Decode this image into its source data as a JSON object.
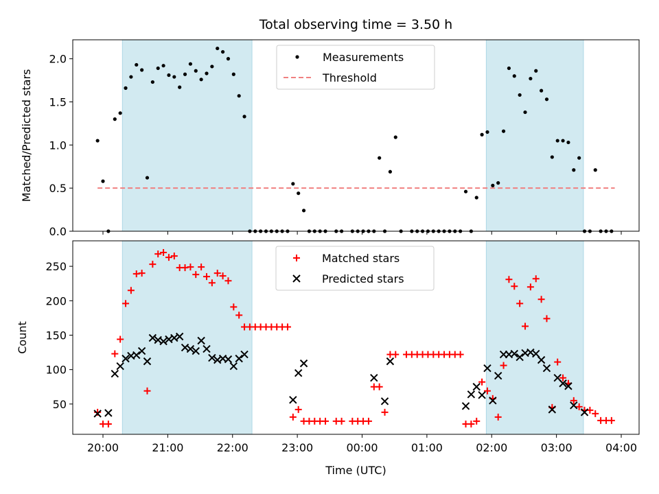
{
  "chart_data": [
    {
      "type": "scatter",
      "title": "Total observing time = 3.50 h",
      "ylabel": "Matched/Predicted stars",
      "xlabel": "",
      "x_axis": "time",
      "ylim": [
        0,
        2.22
      ],
      "yticks": [
        0.0,
        0.5,
        1.0,
        1.5,
        2.0
      ],
      "ytick_labels": [
        "0.0",
        "0.5",
        "1.0",
        "1.5",
        "2.0"
      ],
      "shaded_intervals": [
        [
          "20:18",
          "22:18"
        ],
        [
          "01:55",
          "03:25"
        ]
      ],
      "shade_color": "#add8e6",
      "legend_position": "upper center",
      "series": [
        {
          "name": "Measurements",
          "marker": "dot",
          "color": "#000000",
          "points": [
            [
              "19:55",
              1.05
            ],
            [
              "20:00",
              0.58
            ],
            [
              "20:05",
              0.0
            ],
            [
              "20:11",
              1.3
            ],
            [
              "20:16",
              1.37
            ],
            [
              "20:21",
              1.66
            ],
            [
              "20:26",
              1.79
            ],
            [
              "20:31",
              1.93
            ],
            [
              "20:36",
              1.87
            ],
            [
              "20:41",
              0.62
            ],
            [
              "20:46",
              1.73
            ],
            [
              "20:51",
              1.89
            ],
            [
              "20:56",
              1.92
            ],
            [
              "21:01",
              1.81
            ],
            [
              "21:06",
              1.79
            ],
            [
              "21:11",
              1.67
            ],
            [
              "21:16",
              1.82
            ],
            [
              "21:21",
              1.94
            ],
            [
              "21:26",
              1.86
            ],
            [
              "21:31",
              1.76
            ],
            [
              "21:36",
              1.83
            ],
            [
              "21:41",
              1.91
            ],
            [
              "21:46",
              2.12
            ],
            [
              "21:51",
              2.08
            ],
            [
              "21:56",
              2.0
            ],
            [
              "22:01",
              1.82
            ],
            [
              "22:06",
              1.57
            ],
            [
              "22:11",
              1.33
            ],
            [
              "22:16",
              0.0
            ],
            [
              "22:21",
              0.0
            ],
            [
              "22:26",
              0.0
            ],
            [
              "22:31",
              0.0
            ],
            [
              "22:36",
              0.0
            ],
            [
              "22:41",
              0.0
            ],
            [
              "22:46",
              0.0
            ],
            [
              "22:51",
              0.0
            ],
            [
              "22:56",
              0.55
            ],
            [
              "23:01",
              0.44
            ],
            [
              "23:06",
              0.24
            ],
            [
              "23:11",
              0.0
            ],
            [
              "23:16",
              0.0
            ],
            [
              "23:21",
              0.0
            ],
            [
              "23:26",
              0.0
            ],
            [
              "23:36",
              0.0
            ],
            [
              "23:41",
              0.0
            ],
            [
              "23:51",
              0.0
            ],
            [
              "23:56",
              0.0
            ],
            [
              "00:01",
              0.0
            ],
            [
              "00:06",
              0.0
            ],
            [
              "00:11",
              0.0
            ],
            [
              "00:16",
              0.85
            ],
            [
              "00:21",
              0.0
            ],
            [
              "00:26",
              0.69
            ],
            [
              "00:31",
              1.09
            ],
            [
              "00:36",
              0.0
            ],
            [
              "00:46",
              0.0
            ],
            [
              "00:51",
              0.0
            ],
            [
              "00:56",
              0.0
            ],
            [
              "01:01",
              0.0
            ],
            [
              "01:06",
              0.0
            ],
            [
              "01:11",
              0.0
            ],
            [
              "01:16",
              0.0
            ],
            [
              "01:21",
              0.0
            ],
            [
              "01:26",
              0.0
            ],
            [
              "01:31",
              0.0
            ],
            [
              "01:36",
              0.46
            ],
            [
              "01:41",
              0.0
            ],
            [
              "01:46",
              0.39
            ],
            [
              "01:51",
              1.12
            ],
            [
              "01:56",
              1.15
            ],
            [
              "02:01",
              0.53
            ],
            [
              "02:06",
              0.56
            ],
            [
              "02:11",
              1.16
            ],
            [
              "02:16",
              1.89
            ],
            [
              "02:21",
              1.8
            ],
            [
              "02:26",
              1.58
            ],
            [
              "02:31",
              1.38
            ],
            [
              "02:36",
              1.77
            ],
            [
              "02:41",
              1.86
            ],
            [
              "02:46",
              1.63
            ],
            [
              "02:51",
              1.53
            ],
            [
              "02:56",
              0.86
            ],
            [
              "03:01",
              1.05
            ],
            [
              "03:06",
              1.05
            ],
            [
              "03:11",
              1.03
            ],
            [
              "03:16",
              0.71
            ],
            [
              "03:21",
              0.85
            ],
            [
              "03:26",
              0.0
            ],
            [
              "03:31",
              0.0
            ],
            [
              "03:36",
              0.71
            ],
            [
              "03:41",
              0.0
            ],
            [
              "03:46",
              0.0
            ],
            [
              "03:51",
              0.0
            ]
          ]
        },
        {
          "name": "Threshold",
          "marker": "dashed-line",
          "color": "#f08080",
          "points": [
            [
              "19:55",
              0.5
            ],
            [
              "03:54",
              0.5
            ]
          ]
        }
      ]
    },
    {
      "type": "scatter",
      "title": "",
      "ylabel": "Count",
      "xlabel": "Time (UTC)",
      "x_axis": "time",
      "ylim": [
        6,
        287
      ],
      "yticks": [
        50,
        100,
        150,
        200,
        250
      ],
      "ytick_labels": [
        "50",
        "100",
        "150",
        "200",
        "250"
      ],
      "xticks": [
        "20:00",
        "21:00",
        "22:00",
        "23:00",
        "00:00",
        "01:00",
        "02:00",
        "03:00",
        "04:00"
      ],
      "shaded_intervals": [
        [
          "20:18",
          "22:18"
        ],
        [
          "01:55",
          "03:25"
        ]
      ],
      "shade_color": "#add8e6",
      "legend_position": "upper center",
      "series": [
        {
          "name": "Matched stars",
          "marker": "plus",
          "color": "#ff0000",
          "points": [
            [
              "19:55",
              38
            ],
            [
              "20:00",
              21
            ],
            [
              "20:05",
              21
            ],
            [
              "20:11",
              123
            ],
            [
              "20:16",
              144
            ],
            [
              "20:21",
              196
            ],
            [
              "20:26",
              215
            ],
            [
              "20:31",
              239
            ],
            [
              "20:36",
              240
            ],
            [
              "20:41",
              69
            ],
            [
              "20:46",
              253
            ],
            [
              "20:51",
              268
            ],
            [
              "20:56",
              270
            ],
            [
              "21:01",
              263
            ],
            [
              "21:06",
              265
            ],
            [
              "21:11",
              248
            ],
            [
              "21:16",
              248
            ],
            [
              "21:21",
              249
            ],
            [
              "21:26",
              238
            ],
            [
              "21:31",
              249
            ],
            [
              "21:36",
              235
            ],
            [
              "21:41",
              226
            ],
            [
              "21:46",
              240
            ],
            [
              "21:51",
              236
            ],
            [
              "21:56",
              229
            ],
            [
              "22:01",
              191
            ],
            [
              "22:06",
              179
            ],
            [
              "22:11",
              162
            ],
            [
              "22:16",
              162
            ],
            [
              "22:21",
              162
            ],
            [
              "22:26",
              162
            ],
            [
              "22:31",
              162
            ],
            [
              "22:36",
              162
            ],
            [
              "22:41",
              162
            ],
            [
              "22:46",
              162
            ],
            [
              "22:51",
              162
            ],
            [
              "22:56",
              31
            ],
            [
              "23:01",
              42
            ],
            [
              "23:06",
              25
            ],
            [
              "23:11",
              25
            ],
            [
              "23:16",
              25
            ],
            [
              "23:21",
              25
            ],
            [
              "23:26",
              25
            ],
            [
              "23:36",
              25
            ],
            [
              "23:41",
              25
            ],
            [
              "23:51",
              25
            ],
            [
              "23:56",
              25
            ],
            [
              "00:01",
              25
            ],
            [
              "00:06",
              25
            ],
            [
              "00:11",
              75
            ],
            [
              "00:16",
              75
            ],
            [
              "00:21",
              38
            ],
            [
              "00:26",
              122
            ],
            [
              "00:31",
              122
            ],
            [
              "00:41",
              122
            ],
            [
              "00:46",
              122
            ],
            [
              "00:51",
              122
            ],
            [
              "00:56",
              122
            ],
            [
              "01:01",
              122
            ],
            [
              "01:06",
              122
            ],
            [
              "01:11",
              122
            ],
            [
              "01:16",
              122
            ],
            [
              "01:21",
              122
            ],
            [
              "01:26",
              122
            ],
            [
              "01:31",
              122
            ],
            [
              "01:36",
              21
            ],
            [
              "01:41",
              21
            ],
            [
              "01:46",
              25
            ],
            [
              "01:51",
              82
            ],
            [
              "01:56",
              69
            ],
            [
              "02:01",
              58
            ],
            [
              "02:06",
              31
            ],
            [
              "02:11",
              106
            ],
            [
              "02:16",
              231
            ],
            [
              "02:21",
              221
            ],
            [
              "02:26",
              196
            ],
            [
              "02:31",
              163
            ],
            [
              "02:36",
              220
            ],
            [
              "02:41",
              232
            ],
            [
              "02:46",
              202
            ],
            [
              "02:51",
              174
            ],
            [
              "02:56",
              45
            ],
            [
              "03:01",
              111
            ],
            [
              "03:06",
              88
            ],
            [
              "03:11",
              80
            ],
            [
              "03:16",
              55
            ],
            [
              "03:21",
              46
            ],
            [
              "03:26",
              41
            ],
            [
              "03:31",
              41
            ],
            [
              "03:36",
              36
            ],
            [
              "03:41",
              26
            ],
            [
              "03:46",
              26
            ],
            [
              "03:51",
              26
            ]
          ]
        },
        {
          "name": "Predicted stars",
          "marker": "x",
          "color": "#000000",
          "points": [
            [
              "19:55",
              36
            ],
            [
              "20:05",
              37
            ],
            [
              "20:11",
              94
            ],
            [
              "20:16",
              105
            ],
            [
              "20:21",
              116
            ],
            [
              "20:26",
              120
            ],
            [
              "20:31",
              121
            ],
            [
              "20:36",
              127
            ],
            [
              "20:41",
              112
            ],
            [
              "20:46",
              146
            ],
            [
              "20:51",
              143
            ],
            [
              "20:56",
              141
            ],
            [
              "21:01",
              144
            ],
            [
              "21:06",
              146
            ],
            [
              "21:11",
              148
            ],
            [
              "21:16",
              132
            ],
            [
              "21:21",
              130
            ],
            [
              "21:26",
              127
            ],
            [
              "21:31",
              142
            ],
            [
              "21:36",
              130
            ],
            [
              "21:41",
              117
            ],
            [
              "21:46",
              114
            ],
            [
              "21:51",
              116
            ],
            [
              "21:56",
              115
            ],
            [
              "22:01",
              105
            ],
            [
              "22:06",
              116
            ],
            [
              "22:11",
              122
            ],
            [
              "22:56",
              56
            ],
            [
              "23:01",
              95
            ],
            [
              "23:06",
              109
            ],
            [
              "00:11",
              88
            ],
            [
              "00:21",
              54
            ],
            [
              "00:26",
              112
            ],
            [
              "01:36",
              47
            ],
            [
              "01:41",
              64
            ],
            [
              "01:46",
              75
            ],
            [
              "01:51",
              63
            ],
            [
              "01:56",
              102
            ],
            [
              "02:01",
              55
            ],
            [
              "02:06",
              91
            ],
            [
              "02:11",
              122
            ],
            [
              "02:16",
              122
            ],
            [
              "02:21",
              123
            ],
            [
              "02:26",
              118
            ],
            [
              "02:31",
              124
            ],
            [
              "02:36",
              125
            ],
            [
              "02:41",
              123
            ],
            [
              "02:46",
              114
            ],
            [
              "02:51",
              102
            ],
            [
              "02:56",
              42
            ],
            [
              "03:01",
              88
            ],
            [
              "03:06",
              80
            ],
            [
              "03:11",
              76
            ],
            [
              "03:16",
              48
            ],
            [
              "03:26",
              38
            ]
          ]
        }
      ]
    }
  ]
}
